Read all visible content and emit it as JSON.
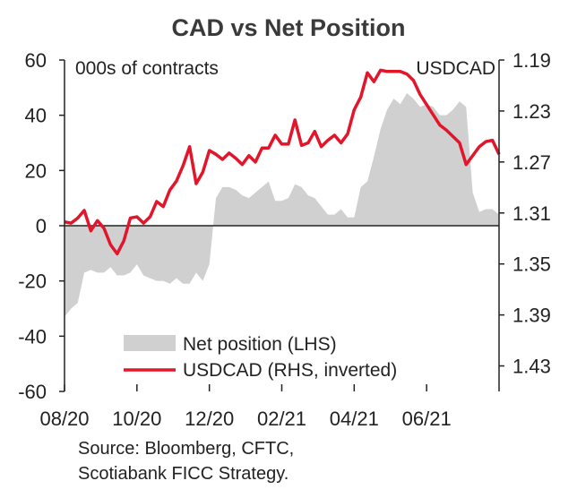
{
  "chart_data": {
    "type": "area+line",
    "title": "CAD vs Net Position",
    "left_axis_unit": "000s of contracts",
    "right_axis_unit": "USDCAD",
    "ylim_left": [
      -60,
      60
    ],
    "left_ticks": [
      "60",
      "40",
      "20",
      "0",
      "-20",
      "-40",
      "-60"
    ],
    "ylim_right_inverted": [
      1.19,
      1.45
    ],
    "right_ticks": [
      "1.19",
      "1.23",
      "1.27",
      "1.31",
      "1.35",
      "1.39",
      "1.43"
    ],
    "x_ticks": [
      "08/20",
      "10/20",
      "12/20",
      "02/21",
      "04/21",
      "06/21"
    ],
    "grid": false,
    "legend_placement": "bottom-center",
    "source_lines": [
      "Source: Bloomberg, CFTC,",
      "Scotiabank FICC  Strategy."
    ],
    "colors": {
      "area": "#d0d0d0",
      "line": "#e3152b",
      "axis": "#222222"
    },
    "series": [
      {
        "name": "Net position (LHS)",
        "kind": "area",
        "axis": "left",
        "values": [
          -33,
          -30,
          -28,
          -17,
          -16,
          -17,
          -17,
          -15,
          -18,
          -18,
          -17,
          -14,
          -18,
          -19,
          -20,
          -20,
          -21,
          -19,
          -21,
          -21,
          -17,
          -20,
          -14,
          10,
          14,
          14,
          13,
          11,
          10,
          12,
          14,
          16,
          9,
          9,
          10,
          15,
          14,
          11,
          10,
          7,
          4,
          4,
          6,
          3,
          3,
          14,
          16,
          25,
          35,
          42,
          46,
          44,
          48,
          46,
          43,
          44,
          43,
          40,
          40,
          42,
          45,
          43,
          12,
          5,
          6,
          6,
          4
        ]
      },
      {
        "name": "USDCAD (RHS, inverted)",
        "kind": "line",
        "axis": "right",
        "values": [
          1.317,
          1.318,
          1.314,
          1.308,
          1.324,
          1.316,
          1.322,
          1.335,
          1.342,
          1.332,
          1.314,
          1.313,
          1.318,
          1.313,
          1.301,
          1.305,
          1.292,
          1.285,
          1.273,
          1.258,
          1.287,
          1.278,
          1.261,
          1.264,
          1.268,
          1.263,
          1.267,
          1.272,
          1.265,
          1.27,
          1.259,
          1.259,
          1.249,
          1.256,
          1.256,
          1.237,
          1.257,
          1.255,
          1.246,
          1.258,
          1.253,
          1.249,
          1.255,
          1.248,
          1.229,
          1.219,
          1.2,
          1.207,
          1.198,
          1.199,
          1.199,
          1.199,
          1.201,
          1.206,
          1.217,
          1.225,
          1.233,
          1.241,
          1.245,
          1.25,
          1.255,
          1.272,
          1.265,
          1.258,
          1.254,
          1.253,
          1.264
        ]
      }
    ]
  }
}
